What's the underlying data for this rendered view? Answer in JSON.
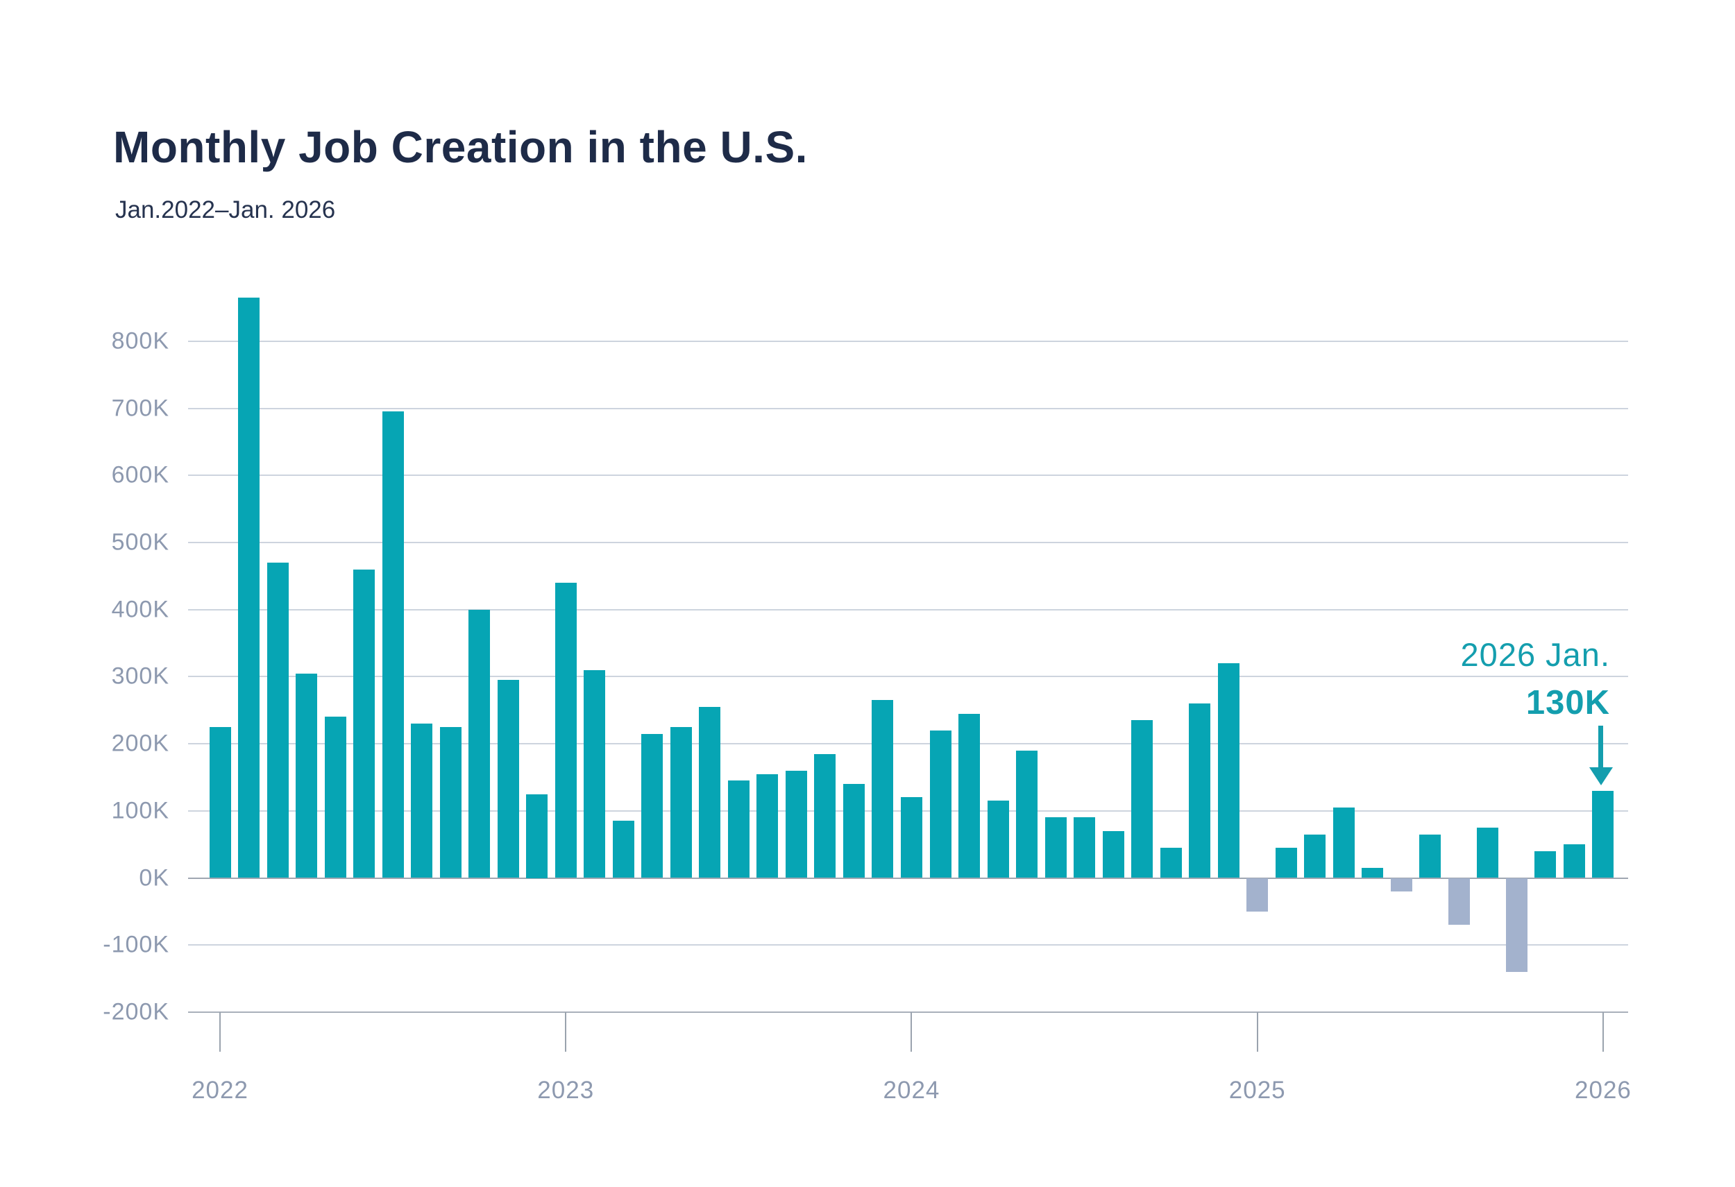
{
  "title": "Monthly Job Creation in the U.S.",
  "subtitle": "Jan.2022–Jan. 2026",
  "annotation": {
    "label": "2026 Jan.",
    "value_label": "130K"
  },
  "colors": {
    "bar_positive": "#06a5b4",
    "bar_negative": "#a3b2cd",
    "accent_text": "#149eae",
    "title_text": "#1e2b48",
    "axis_label": "#8d99af",
    "gridline": "#cdd4de",
    "zero_line": "#9fa6b1"
  },
  "chart_data": {
    "type": "bar",
    "title": "Monthly Job Creation in the U.S.",
    "subtitle": "Jan.2022–Jan. 2026",
    "unit": "thousands of jobs (K)",
    "grid": "horizontal gridlines every 100K",
    "legend": "none",
    "ylim": [
      -200,
      900
    ],
    "y_tick_values": [
      800,
      700,
      600,
      500,
      400,
      300,
      200,
      100,
      0,
      -100,
      -200
    ],
    "y_tick_labels": [
      "800K",
      "700K",
      "600K",
      "500K",
      "400K",
      "300K",
      "200K",
      "100K",
      "0K",
      "-100K",
      "-200K"
    ],
    "x_tick_labels": [
      "2022",
      "2023",
      "2024",
      "2025",
      "2026"
    ],
    "x_tick_indices": [
      0,
      12,
      24,
      36,
      48
    ],
    "categories": [
      "Jan 2022",
      "Feb 2022",
      "Mar 2022",
      "Apr 2022",
      "May 2022",
      "Jun 2022",
      "Jul 2022",
      "Aug 2022",
      "Sep 2022",
      "Oct 2022",
      "Nov 2022",
      "Dec 2022",
      "Jan 2023",
      "Feb 2023",
      "Mar 2023",
      "Apr 2023",
      "May 2023",
      "Jun 2023",
      "Jul 2023",
      "Aug 2023",
      "Sep 2023",
      "Oct 2023",
      "Nov 2023",
      "Dec 2023",
      "Jan 2024",
      "Feb 2024",
      "Mar 2024",
      "Apr 2024",
      "May 2024",
      "Jun 2024",
      "Jul 2024",
      "Aug 2024",
      "Sep 2024",
      "Oct 2024",
      "Nov 2024",
      "Dec 2024",
      "Jan 2025",
      "Feb 2025",
      "Mar 2025",
      "Apr 2025",
      "May 2025",
      "Jun 2025",
      "Jul 2025",
      "Aug 2025",
      "Sep 2025",
      "Oct 2025",
      "Nov 2025",
      "Dec 2025",
      "Jan 2026"
    ],
    "values": [
      225,
      865,
      470,
      305,
      240,
      460,
      695,
      230,
      225,
      400,
      295,
      125,
      440,
      310,
      85,
      215,
      225,
      255,
      145,
      155,
      160,
      185,
      140,
      265,
      120,
      220,
      245,
      115,
      190,
      90,
      90,
      70,
      235,
      45,
      260,
      320,
      -50,
      45,
      65,
      105,
      15,
      -20,
      65,
      -70,
      75,
      -140,
      40,
      50,
      130
    ],
    "annotation": {
      "target_category": "Jan 2026",
      "label": "2026 Jan.",
      "value_label": "130K"
    }
  }
}
